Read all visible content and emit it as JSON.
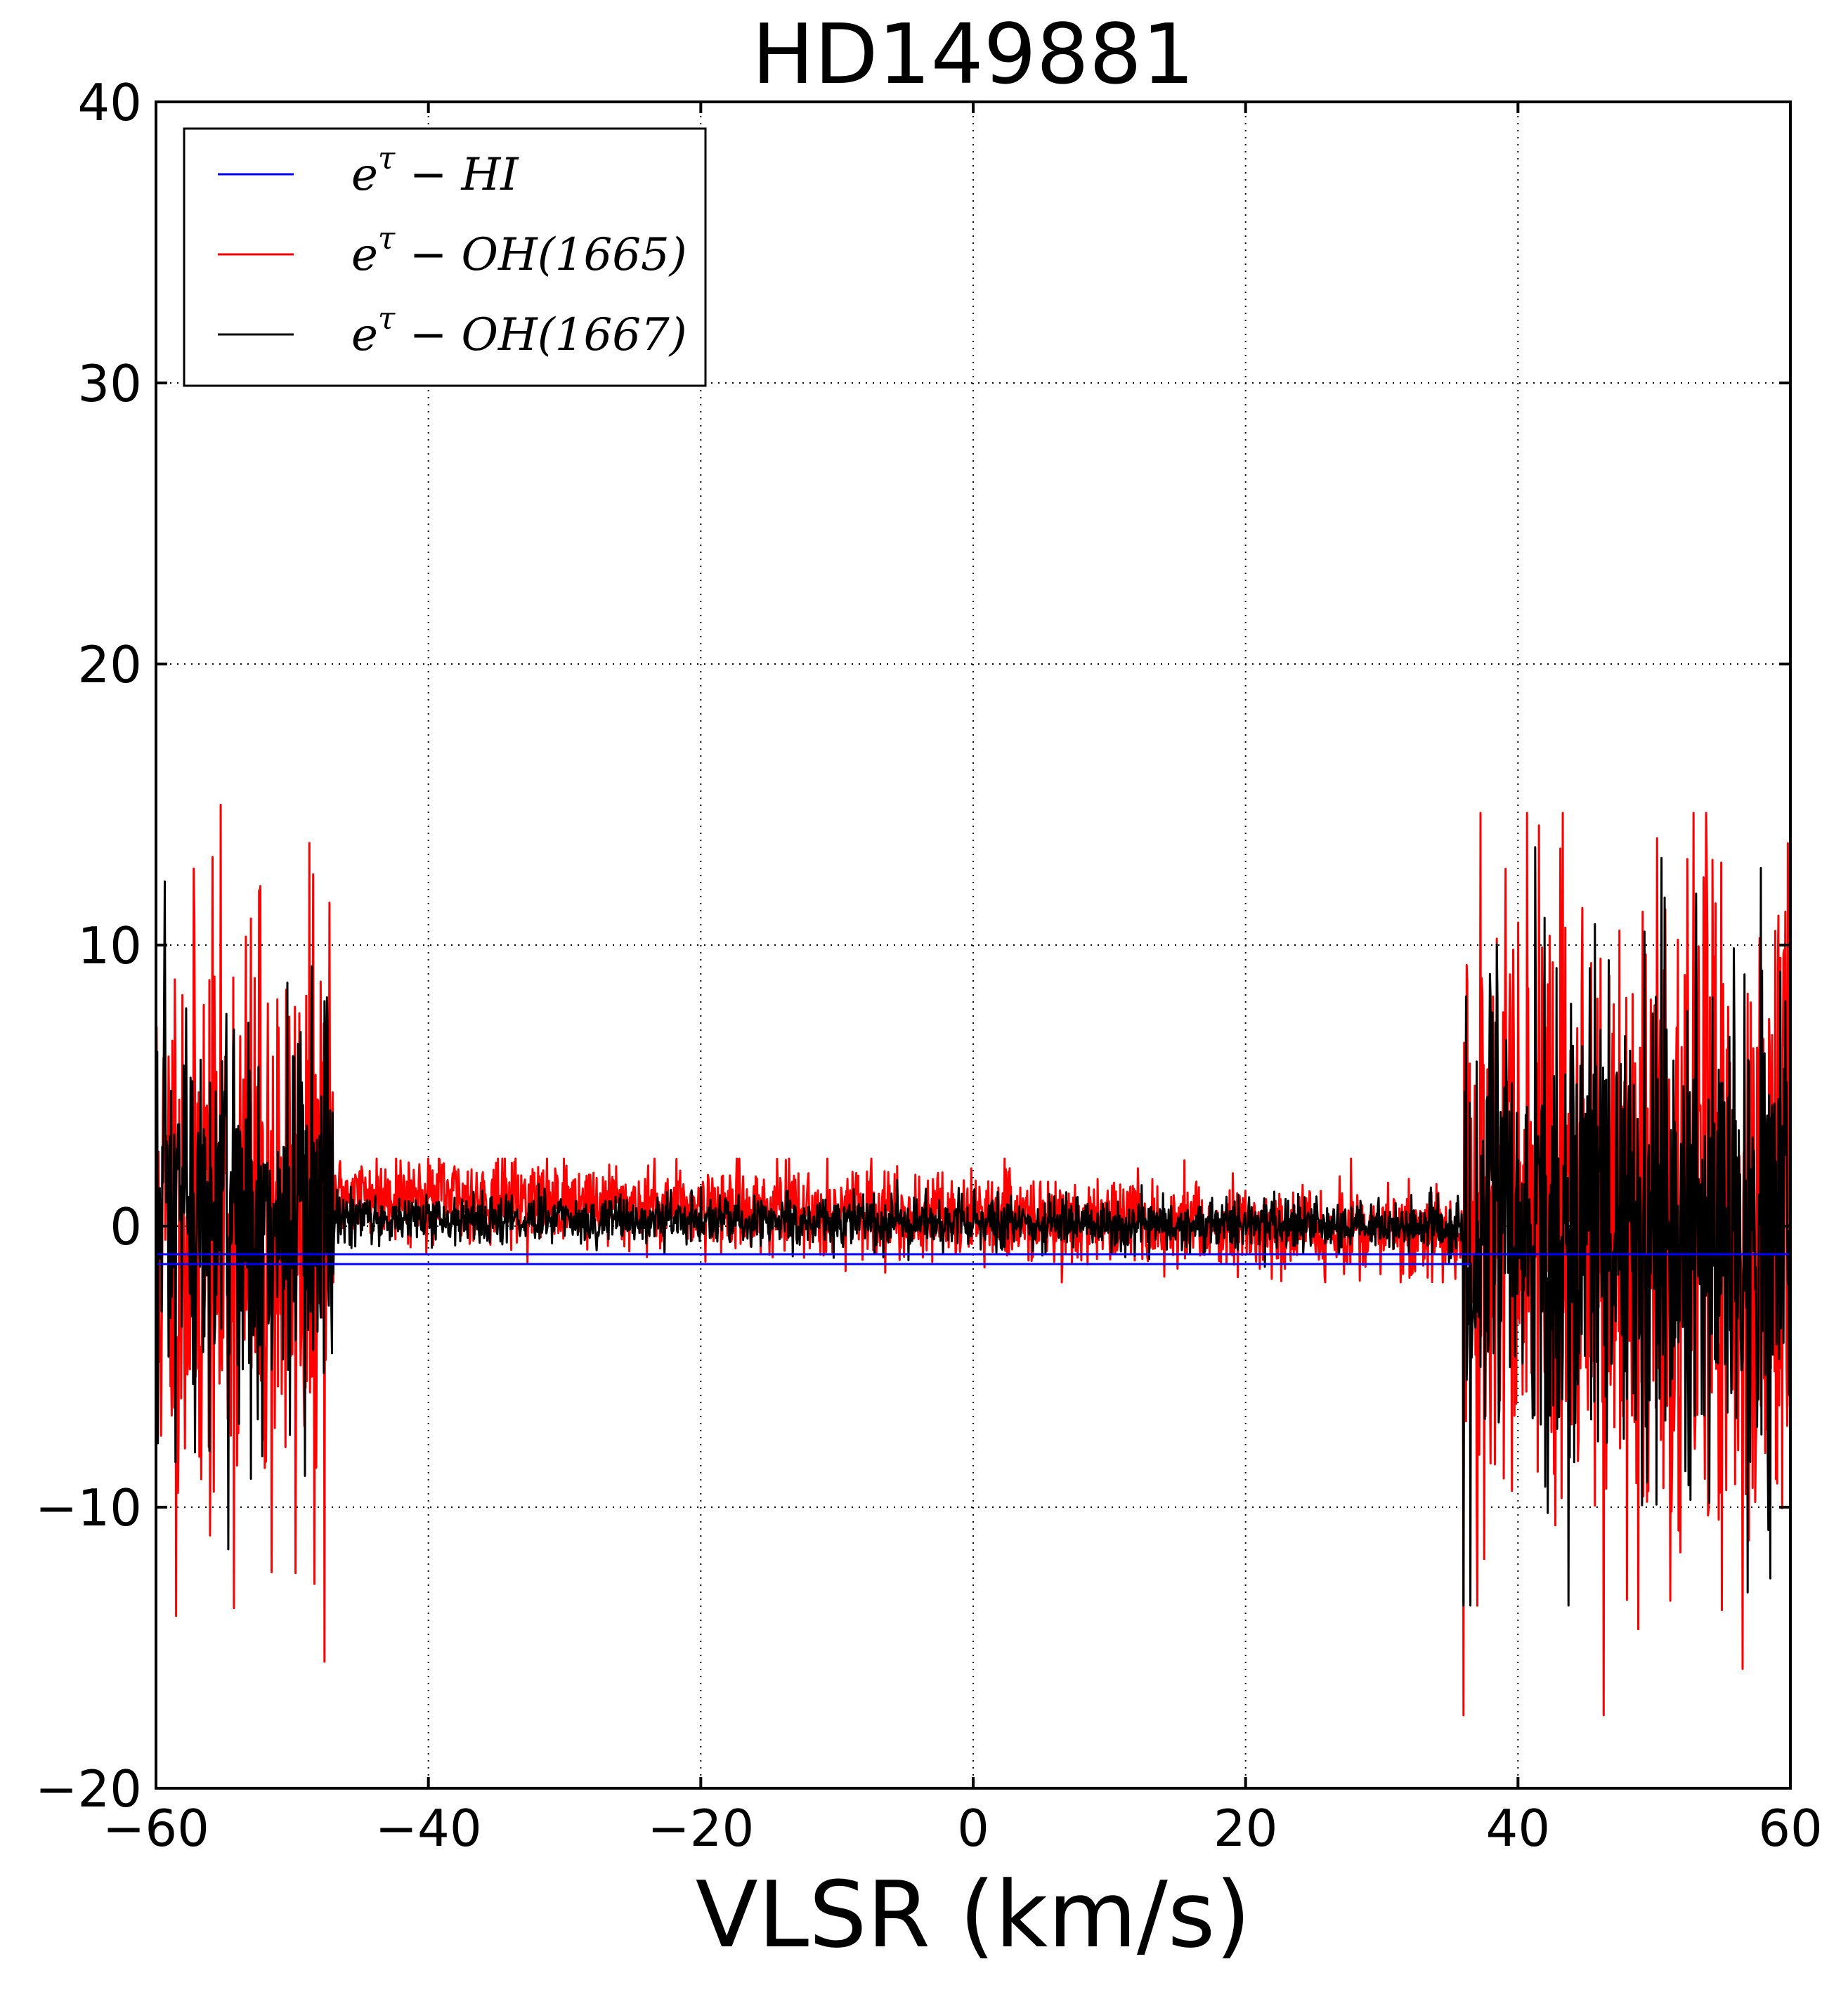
{
  "chart_data": {
    "type": "line",
    "title": "HD149881",
    "xlabel": "VLSR (km/s)",
    "ylabel": "",
    "xlim": [
      -60,
      60
    ],
    "ylim": [
      -20,
      40
    ],
    "x_ticks": [
      -60,
      -40,
      -20,
      0,
      20,
      40,
      60
    ],
    "x_tick_labels": [
      "−60",
      "−40",
      "−20",
      "0",
      "20",
      "40",
      "60"
    ],
    "y_ticks": [
      -20,
      -10,
      0,
      10,
      20,
      30,
      40
    ],
    "y_tick_labels": [
      "−20",
      "−10",
      "0",
      "10",
      "20",
      "30",
      "40"
    ],
    "grid": true,
    "legend_position": "top-left",
    "series": [
      {
        "name": "e^τ − HI",
        "legend_base": "e",
        "legend_sup": "τ",
        "legend_rest": " − HI",
        "color": "#0000ff",
        "x": [
          -60,
          60
        ],
        "y": [
          -1.0,
          -1.0
        ],
        "secondary_segment": {
          "x": [
            -60,
            36.5
          ],
          "y": [
            -1.35,
            -1.35
          ]
        }
      },
      {
        "name": "e^τ − OH(1665)",
        "legend_base": "e",
        "legend_sup": "τ",
        "legend_rest": " − OH(1665)",
        "color": "#ff0000",
        "x_range": [
          -60,
          60
        ],
        "noisy_regions": [
          {
            "x": [
              -60,
              -47
            ],
            "amplitude": 5.5,
            "max": 15.8,
            "min": -17.7
          },
          {
            "x": [
              -47,
              36
            ],
            "mean_start": 1.2,
            "mean_end": -0.3,
            "amplitude": 0.75,
            "max": 2.4,
            "min": -2.0
          },
          {
            "x": [
              36,
              60
            ],
            "amplitude": 6.0,
            "max": 14.7,
            "min": -17.4
          }
        ]
      },
      {
        "name": "e^τ − OH(1667)",
        "legend_base": "e",
        "legend_sup": "τ",
        "legend_rest": " − OH(1667)",
        "color": "#000000",
        "x_range": [
          -60,
          60
        ],
        "noisy_regions": [
          {
            "x": [
              -60,
              -47
            ],
            "amplitude": 4.0,
            "max": 13.7,
            "min": -11.5
          },
          {
            "x": [
              -47,
              36
            ],
            "mean_start": 0.3,
            "mean_end": 0.0,
            "amplitude": 0.45,
            "max": 1.8,
            "min": -1.7
          },
          {
            "x": [
              36,
              60
            ],
            "amplitude": 4.8,
            "max": 16.9,
            "min": -13.5
          }
        ]
      }
    ]
  }
}
